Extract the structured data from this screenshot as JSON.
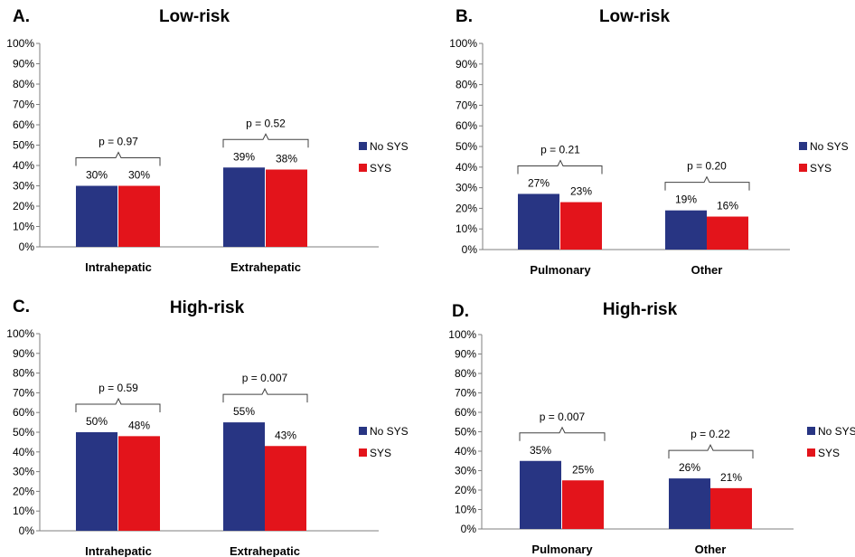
{
  "chart_data": [
    {
      "type": "bar",
      "panel_label": "A.",
      "title": "Low-risk",
      "categories": [
        "Intrahepatic",
        "Extrahepatic"
      ],
      "series": [
        {
          "name": "No SYS",
          "values": [
            30,
            39
          ],
          "labels": [
            "30%",
            "39%"
          ],
          "color": "#283583"
        },
        {
          "name": "SYS",
          "values": [
            30,
            38
          ],
          "labels": [
            "30%",
            "38%"
          ],
          "color": "#e3141b"
        }
      ],
      "p_values": [
        "p = 0.97",
        "p = 0.52"
      ],
      "ylim": [
        0,
        100
      ],
      "yticks": [
        "0%",
        "10%",
        "20%",
        "30%",
        "40%",
        "50%",
        "60%",
        "70%",
        "80%",
        "90%",
        "100%"
      ],
      "legend": "right",
      "grid": false
    },
    {
      "type": "bar",
      "panel_label": "B.",
      "title": "Low-risk",
      "categories": [
        "Pulmonary",
        "Other"
      ],
      "series": [
        {
          "name": "No SYS",
          "values": [
            27,
            19
          ],
          "labels": [
            "27%",
            "19%"
          ],
          "color": "#283583"
        },
        {
          "name": "SYS",
          "values": [
            23,
            16
          ],
          "labels": [
            "23%",
            "16%"
          ],
          "color": "#e3141b"
        }
      ],
      "p_values": [
        "p = 0.21",
        "p = 0.20"
      ],
      "ylim": [
        0,
        100
      ],
      "yticks": [
        "0%",
        "10%",
        "20%",
        "30%",
        "40%",
        "50%",
        "60%",
        "70%",
        "80%",
        "90%",
        "100%"
      ],
      "legend": "right",
      "grid": false
    },
    {
      "type": "bar",
      "panel_label": "C.",
      "title": "High-risk",
      "categories": [
        "Intrahepatic",
        "Extrahepatic"
      ],
      "series": [
        {
          "name": "No SYS",
          "values": [
            50,
            55
          ],
          "labels": [
            "50%",
            "55%"
          ],
          "color": "#283583"
        },
        {
          "name": "SYS",
          "values": [
            48,
            43
          ],
          "labels": [
            "48%",
            "43%"
          ],
          "color": "#e3141b"
        }
      ],
      "p_values": [
        "p = 0.59",
        "p = 0.007"
      ],
      "ylim": [
        0,
        100
      ],
      "yticks": [
        "0%",
        "10%",
        "20%",
        "30%",
        "40%",
        "50%",
        "60%",
        "70%",
        "80%",
        "90%",
        "100%"
      ],
      "legend": "right",
      "grid": false
    },
    {
      "type": "bar",
      "panel_label": "D.",
      "title": "High-risk",
      "categories": [
        "Pulmonary",
        "Other"
      ],
      "series": [
        {
          "name": "No SYS",
          "values": [
            35,
            26
          ],
          "labels": [
            "35%",
            "26%"
          ],
          "color": "#283583"
        },
        {
          "name": "SYS",
          "values": [
            25,
            21
          ],
          "labels": [
            "25%",
            "21%"
          ],
          "color": "#e3141b"
        }
      ],
      "p_values": [
        "p = 0.007",
        "p = 0.22"
      ],
      "ylim": [
        0,
        100
      ],
      "yticks": [
        "0%",
        "10%",
        "20%",
        "30%",
        "40%",
        "50%",
        "60%",
        "70%",
        "80%",
        "90%",
        "100%"
      ],
      "legend": "right",
      "grid": false
    }
  ]
}
